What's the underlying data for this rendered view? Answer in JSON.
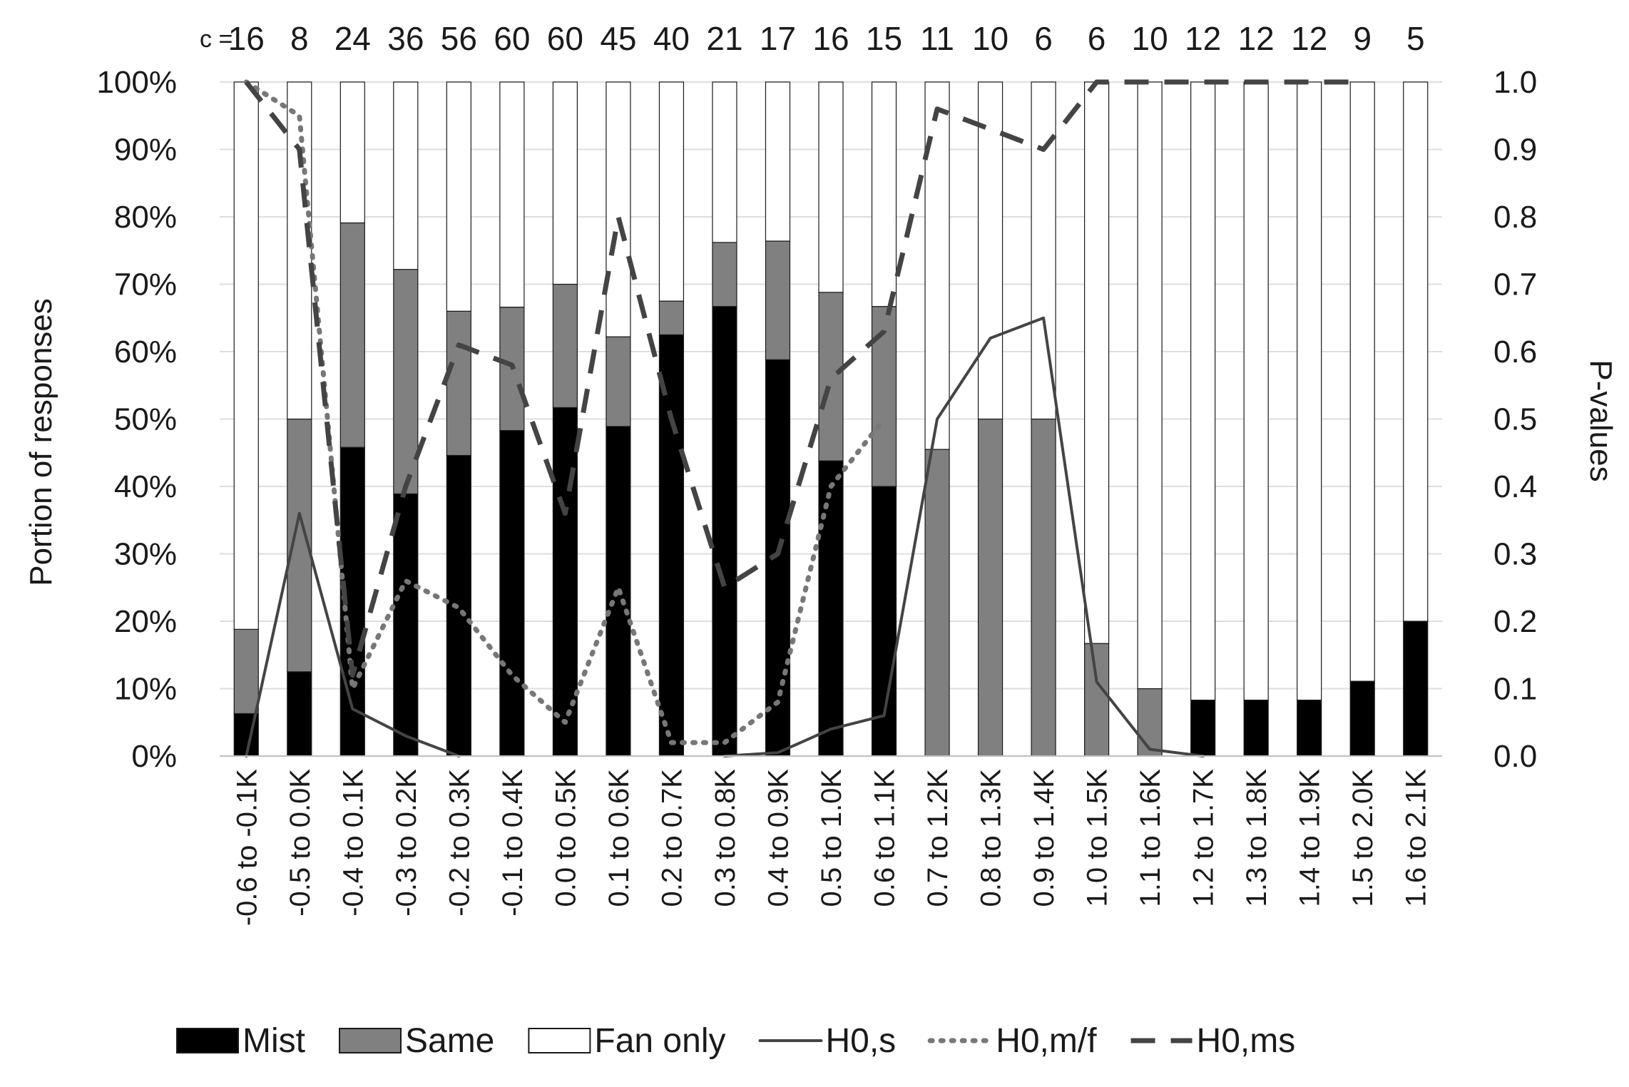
{
  "chart_data": {
    "type": "bar",
    "stacked": true,
    "count_prefix": "c =",
    "counts": [
      "16",
      "8",
      "24",
      "36",
      "56",
      "60",
      "60",
      "45",
      "40",
      "21",
      "17",
      "16",
      "15",
      "11",
      "10",
      "6",
      "6",
      "10",
      "12",
      "12",
      "12",
      "9",
      "5"
    ],
    "categories": [
      "-0.6 to -0.1K",
      "-0.5 to 0.0K",
      "-0.4 to 0.1K",
      "-0.3 to 0.2K",
      "-0.2 to 0.3K",
      "-0.1 to 0.4K",
      "0.0 to 0.5K",
      "0.1 to 0.6K",
      "0.2 to 0.7K",
      "0.3 to 0.8K",
      "0.4 to 0.9K",
      "0.5 to 1.0K",
      "0.6 to 1.1K",
      "0.7 to 1.2K",
      "0.8 to 1.3K",
      "0.9 to 1.4K",
      "1.0 to 1.5K",
      "1.1 to 1.6K",
      "1.2 to 1.7K",
      "1.3 to 1.8K",
      "1.4 to 1.9K",
      "1.5 to 2.0K",
      "1.6 to 2.1K"
    ],
    "ylabel": "Portion of responses",
    "y2label": "P-values",
    "ylim": [
      0,
      100
    ],
    "y2lim": [
      0,
      1
    ],
    "yticks": [
      "0%",
      "10%",
      "20%",
      "30%",
      "40%",
      "50%",
      "60%",
      "70%",
      "80%",
      "90%",
      "100%"
    ],
    "y2ticks": [
      "0.0",
      "0.1",
      "0.2",
      "0.3",
      "0.4",
      "0.5",
      "0.6",
      "0.7",
      "0.8",
      "0.9",
      "1.0"
    ],
    "grid": true,
    "legend_position": "bottom",
    "bar_series": [
      {
        "name": "Mist",
        "color": "#000000",
        "values": [
          6.3,
          12.5,
          45.8,
          38.9,
          44.6,
          48.3,
          51.7,
          48.9,
          62.5,
          66.7,
          58.8,
          43.8,
          40.0,
          0,
          0,
          0,
          0,
          0,
          8.3,
          8.3,
          8.3,
          11.1,
          20.0
        ]
      },
      {
        "name": "Same",
        "color": "#808080",
        "values": [
          12.5,
          37.5,
          33.3,
          33.3,
          21.4,
          18.3,
          18.3,
          13.3,
          5.0,
          9.5,
          17.6,
          25.0,
          26.7,
          45.5,
          50.0,
          50.0,
          16.7,
          10.0,
          0,
          0,
          0,
          0,
          0
        ]
      },
      {
        "name": "Fan only",
        "color": "#ffffff",
        "values": [
          81.2,
          50.0,
          20.9,
          27.8,
          34.0,
          33.4,
          30.0,
          37.8,
          32.5,
          23.8,
          23.6,
          31.2,
          33.3,
          54.5,
          50.0,
          50.0,
          83.3,
          90.0,
          91.7,
          91.7,
          91.7,
          88.9,
          80.0
        ]
      }
    ],
    "line_series": [
      {
        "name": "H0,s",
        "style": "solid",
        "color": "#444444",
        "values": [
          0,
          0.36,
          0.07,
          0.03,
          0,
          null,
          null,
          null,
          null,
          0,
          0.005,
          0.04,
          0.06,
          0.5,
          0.62,
          0.65,
          0.11,
          0.01,
          0,
          null,
          null,
          null,
          null
        ]
      },
      {
        "name": "H0,m/f",
        "style": "dotted",
        "color": "#777777",
        "values": [
          1.0,
          0.95,
          0.1,
          0.26,
          0.22,
          0.12,
          0.05,
          0.25,
          0.02,
          0.02,
          0.08,
          0.4,
          0.5,
          null,
          null,
          null,
          null,
          null,
          null,
          null,
          null,
          null,
          null
        ]
      },
      {
        "name": "H0,ms",
        "style": "dashed",
        "color": "#444444",
        "values": [
          1.0,
          0.9,
          0.12,
          0.4,
          0.61,
          0.58,
          0.36,
          0.8,
          0.5,
          0.25,
          0.3,
          0.56,
          0.63,
          0.96,
          0.93,
          0.9,
          1.0,
          1.0,
          1.0,
          1.0,
          1.0,
          1.0,
          null
        ]
      }
    ]
  }
}
